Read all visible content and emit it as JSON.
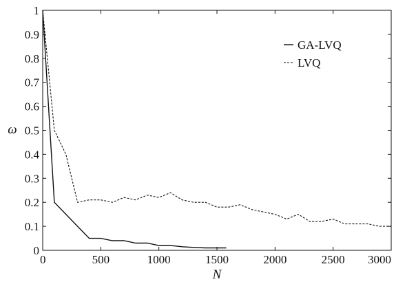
{
  "chart_data": {
    "type": "line",
    "xlabel": "N",
    "ylabel": "ω",
    "xlim": [
      0,
      3000
    ],
    "ylim": [
      0,
      1
    ],
    "xticks": [
      "0",
      "500",
      "1000",
      "1500",
      "2000",
      "2500",
      "3000"
    ],
    "xtick_values": [
      0,
      500,
      1000,
      1500,
      2000,
      2500,
      3000
    ],
    "yticks": [
      "0",
      "0.1",
      "0.2",
      "0.3",
      "0.4",
      "0.5",
      "0.6",
      "0.7",
      "0.8",
      "0.9",
      "1"
    ],
    "ytick_values": [
      0,
      0.1,
      0.2,
      0.3,
      0.4,
      0.5,
      0.6,
      0.7,
      0.8,
      0.9,
      1
    ],
    "grid": false,
    "legend_position": "top-right",
    "series": [
      {
        "name": "GA-LVQ",
        "style": "solid",
        "color": "#111111",
        "x": [
          0,
          100,
          200,
          300,
          400,
          500,
          600,
          700,
          800,
          900,
          1000,
          1100,
          1200,
          1300,
          1400,
          1500,
          1580
        ],
        "y": [
          1.0,
          0.2,
          0.15,
          0.1,
          0.05,
          0.05,
          0.04,
          0.04,
          0.03,
          0.03,
          0.02,
          0.02,
          0.015,
          0.012,
          0.01,
          0.01,
          0.01
        ]
      },
      {
        "name": "LVQ",
        "style": "dashed",
        "color": "#111111",
        "x": [
          0,
          100,
          200,
          300,
          400,
          500,
          600,
          700,
          800,
          900,
          1000,
          1100,
          1200,
          1300,
          1400,
          1500,
          1600,
          1700,
          1800,
          1900,
          2000,
          2100,
          2200,
          2300,
          2400,
          2500,
          2600,
          2700,
          2800,
          2900,
          3000
        ],
        "y": [
          1.0,
          0.5,
          0.4,
          0.2,
          0.21,
          0.21,
          0.2,
          0.22,
          0.21,
          0.23,
          0.22,
          0.24,
          0.21,
          0.2,
          0.2,
          0.18,
          0.18,
          0.19,
          0.17,
          0.16,
          0.15,
          0.13,
          0.15,
          0.12,
          0.12,
          0.13,
          0.11,
          0.11,
          0.11,
          0.1,
          0.1
        ]
      }
    ]
  }
}
